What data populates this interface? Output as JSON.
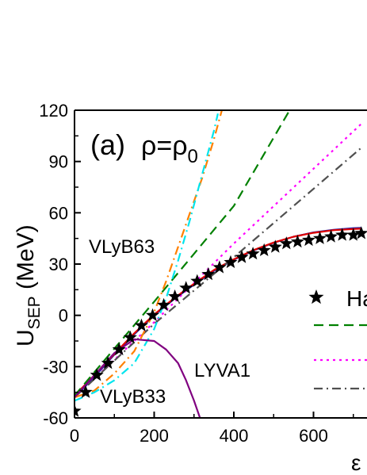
{
  "chart_data": {
    "type": "line",
    "panel_label": "(a)",
    "panel_condition": {
      "rho": "ρ",
      "eq": "=",
      "rho0_base": "ρ",
      "rho0_sub": "0"
    },
    "ylabel": {
      "main": "U",
      "sub": "SEP",
      "unit": " (MeV)"
    },
    "xlabel": "ε",
    "xlim": [
      0,
      720
    ],
    "ylim": [
      -60,
      120
    ],
    "xticks": [
      0,
      200,
      400,
      600
    ],
    "yticks": [
      -60,
      -30,
      0,
      30,
      60,
      90,
      120
    ],
    "legend_placement": "right",
    "legend_partial_text": "Ha",
    "annotations": [
      {
        "text": "VLyB63",
        "color": "#ff8000"
      },
      {
        "text": "LYVA1",
        "color": "#800080"
      },
      {
        "text": "VLyB33",
        "color": "#00e5ee"
      }
    ],
    "series": [
      {
        "style": "stars",
        "color": "#000000",
        "x": [
          0,
          28,
          56,
          84,
          112,
          140,
          168,
          196,
          224,
          252,
          280,
          308,
          336,
          364,
          392,
          420,
          448,
          476,
          504,
          532,
          560,
          588,
          616,
          644,
          672,
          700,
          720
        ],
        "y": [
          -56,
          -45,
          -35,
          -28,
          -20,
          -13,
          -6,
          0,
          6,
          11,
          16,
          20,
          24,
          28,
          31,
          34,
          36,
          38,
          40,
          42,
          43,
          44,
          45,
          46,
          47,
          47,
          48
        ]
      },
      {
        "style": "solid",
        "color": "#1f1fa8",
        "x": [
          0,
          50,
          100,
          150,
          200,
          250,
          300,
          350,
          400,
          450,
          500,
          550,
          600,
          650,
          700,
          720
        ],
        "y": [
          -48,
          -36,
          -23,
          -11,
          0,
          9.5,
          18,
          26,
          32.5,
          38,
          42.5,
          46,
          48.5,
          50,
          51,
          51.2
        ]
      },
      {
        "style": "solid",
        "color": "#e00000",
        "x": [
          0,
          50,
          100,
          150,
          200,
          250,
          300,
          350,
          400,
          450,
          500,
          550,
          600,
          650,
          700,
          720
        ],
        "y": [
          -47,
          -35,
          -22.5,
          -10.5,
          0.5,
          10,
          18.5,
          26.5,
          32.8,
          38.2,
          42.6,
          46,
          48.3,
          49.8,
          50.5,
          50.7
        ]
      },
      {
        "style": "dashed",
        "color": "#008000",
        "x": [
          0,
          200,
          400,
          540
        ],
        "y": [
          -47,
          8,
          64,
          120
        ]
      },
      {
        "style": "dotted",
        "color": "#ff00ff",
        "x": [
          0,
          200,
          400,
          720
        ],
        "y": [
          -48,
          -4,
          42,
          112
        ]
      },
      {
        "style": "dashdot",
        "color": "#505050",
        "x": [
          0,
          200,
          400,
          720
        ],
        "y": [
          -48,
          -5,
          34,
          98
        ]
      },
      {
        "style": "dashdot",
        "color": "#ff8000",
        "x": [
          0,
          50,
          100,
          150,
          200,
          230,
          260,
          290,
          320,
          350,
          370
        ],
        "y": [
          -48,
          -44,
          -34,
          -21,
          2,
          20,
          40,
          60,
          80,
          103,
          120
        ]
      },
      {
        "style": "dashdot",
        "color": "#00e5ee",
        "x": [
          0,
          50,
          100,
          150,
          200,
          230,
          260,
          290,
          320,
          350,
          360
        ],
        "y": [
          -50,
          -45,
          -38,
          -28,
          -8,
          10,
          32,
          56,
          82,
          108,
          118
        ]
      },
      {
        "style": "solid",
        "color": "#800080",
        "x": [
          0,
          50,
          100,
          150,
          200,
          230,
          260,
          280,
          300,
          315
        ],
        "y": [
          -48,
          -35,
          -22,
          -14,
          -15,
          -20,
          -28,
          -38,
          -50,
          -60
        ]
      }
    ]
  }
}
